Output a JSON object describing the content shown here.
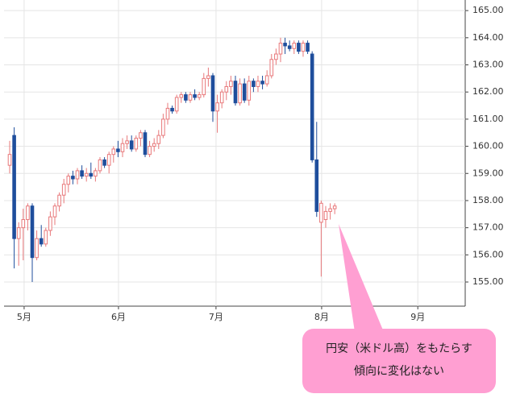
{
  "chart_data": {
    "type": "candlestick",
    "x": [
      0,
      1,
      2,
      3,
      4,
      5,
      6,
      7,
      8,
      9,
      10,
      11,
      12,
      13,
      14,
      15,
      16,
      17,
      18,
      19,
      20,
      21,
      22,
      23,
      24,
      25,
      26,
      27,
      28,
      29,
      30,
      31,
      32,
      33,
      34,
      35,
      36,
      37,
      38,
      39,
      40,
      41,
      42,
      43,
      44,
      45,
      46,
      47,
      48,
      49,
      50,
      51,
      52,
      53,
      54,
      55,
      56,
      57,
      58,
      59,
      60,
      61,
      62,
      63,
      64,
      65,
      66,
      67,
      68,
      69,
      70,
      71,
      72
    ],
    "open": [
      159.3,
      160.4,
      156.6,
      157.0,
      157.3,
      157.8,
      155.9,
      156.6,
      156.4,
      156.9,
      157.4,
      157.8,
      158.2,
      158.6,
      158.9,
      158.8,
      159.1,
      158.9,
      159.0,
      158.9,
      159.1,
      159.5,
      159.3,
      159.7,
      159.9,
      159.8,
      160.1,
      160.2,
      159.9,
      160.3,
      160.5,
      159.7,
      160.0,
      160.1,
      160.4,
      161.0,
      161.4,
      161.3,
      161.8,
      161.9,
      161.7,
      161.9,
      161.8,
      161.9,
      162.5,
      162.6,
      161.3,
      161.6,
      162.0,
      162.2,
      162.4,
      161.6,
      162.3,
      161.7,
      162.4,
      162.2,
      162.4,
      162.3,
      162.6,
      163.2,
      163.4,
      163.8,
      163.7,
      163.6,
      163.8,
      163.5,
      163.8,
      163.4,
      159.5,
      157.2,
      157.3,
      157.6,
      157.7
    ],
    "high": [
      160.2,
      160.7,
      157.2,
      157.7,
      157.9,
      157.9,
      156.9,
      157.1,
      157.0,
      157.6,
      157.9,
      158.3,
      158.8,
      159.0,
      159.1,
      159.2,
      159.3,
      159.2,
      159.4,
      159.2,
      159.6,
      159.6,
      159.8,
      160.0,
      160.2,
      160.3,
      160.4,
      160.4,
      160.4,
      160.6,
      160.6,
      160.2,
      160.3,
      160.6,
      161.2,
      161.6,
      161.5,
      161.9,
      162.0,
      162.0,
      162.0,
      162.1,
      162.0,
      162.7,
      162.9,
      162.7,
      161.9,
      162.1,
      162.4,
      162.6,
      162.6,
      162.5,
      162.5,
      162.6,
      162.5,
      162.6,
      162.6,
      162.8,
      163.4,
      163.6,
      164.0,
      164.0,
      163.9,
      163.9,
      163.9,
      163.9,
      163.9,
      163.5,
      160.9,
      158.0,
      157.8,
      157.9,
      157.9
    ],
    "low": [
      159.0,
      155.5,
      155.6,
      155.8,
      156.9,
      155.0,
      155.8,
      156.3,
      156.3,
      156.7,
      157.1,
      157.6,
      157.9,
      158.3,
      158.6,
      158.6,
      158.8,
      158.7,
      158.8,
      158.7,
      159.0,
      159.2,
      159.0,
      159.4,
      159.6,
      159.6,
      159.9,
      159.8,
      159.8,
      160.0,
      159.6,
      159.6,
      159.8,
      159.9,
      160.3,
      160.8,
      161.2,
      161.2,
      161.6,
      161.6,
      161.6,
      161.7,
      161.7,
      161.8,
      162.2,
      160.9,
      160.5,
      161.4,
      161.7,
      161.9,
      161.5,
      161.5,
      161.6,
      161.5,
      162.0,
      162.0,
      162.1,
      162.2,
      162.5,
      163.0,
      163.1,
      163.4,
      163.5,
      163.4,
      163.4,
      163.3,
      163.4,
      159.4,
      157.4,
      155.2,
      157.0,
      157.3,
      157.5
    ],
    "close": [
      159.7,
      156.6,
      157.0,
      157.3,
      157.8,
      155.9,
      156.6,
      156.4,
      156.9,
      157.4,
      157.8,
      158.2,
      158.6,
      158.9,
      158.8,
      159.1,
      158.9,
      159.0,
      158.9,
      159.1,
      159.5,
      159.3,
      159.7,
      159.9,
      159.8,
      160.1,
      160.2,
      159.9,
      160.3,
      160.5,
      159.7,
      160.0,
      160.1,
      160.4,
      161.0,
      161.4,
      161.3,
      161.8,
      161.9,
      161.7,
      161.9,
      161.8,
      161.9,
      162.5,
      162.6,
      161.3,
      161.6,
      162.0,
      162.2,
      162.4,
      161.6,
      162.3,
      161.7,
      162.4,
      162.2,
      162.4,
      162.3,
      162.6,
      163.2,
      163.4,
      163.8,
      163.7,
      163.6,
      163.8,
      163.5,
      163.8,
      163.5,
      159.5,
      157.6,
      157.9,
      157.6,
      157.7,
      157.8
    ],
    "up_color": "#e8787a",
    "down_color": "#1f4e9c",
    "xlim": [
      -1.25,
      100.9
    ],
    "xticks": [
      {
        "value": 3.2,
        "label": "5月"
      },
      {
        "value": 24.1,
        "label": "6月"
      },
      {
        "value": 45.7,
        "label": "7月"
      },
      {
        "value": 69.1,
        "label": "8月"
      },
      {
        "value": 90.4,
        "label": "9月"
      }
    ],
    "ylim": [
      154.11,
      165.39
    ],
    "yticks": [
      {
        "value": 155,
        "label": "155.00"
      },
      {
        "value": 156,
        "label": "156.00"
      },
      {
        "value": 157,
        "label": "157.00"
      },
      {
        "value": 158,
        "label": "158.00"
      },
      {
        "value": 159,
        "label": "159.00"
      },
      {
        "value": 160,
        "label": "160.00"
      },
      {
        "value": 161,
        "label": "161.00"
      },
      {
        "value": 162,
        "label": "162.00"
      },
      {
        "value": 163,
        "label": "163.00"
      },
      {
        "value": 164,
        "label": "164.00"
      },
      {
        "value": 165,
        "label": "165.00"
      }
    ],
    "grid": true,
    "annotation": [
      "円安（米ドル高）をもたらす",
      "傾向に変化はない"
    ]
  }
}
